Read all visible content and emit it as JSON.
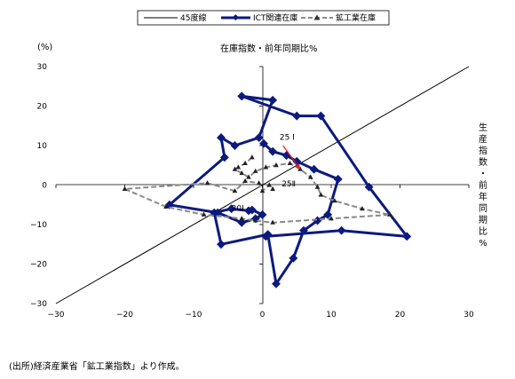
{
  "chart_data": {
    "type": "scatter",
    "title": "在庫指数・前年同期比%",
    "ylabel": "(%)",
    "ylabel_right": [
      "生",
      "産",
      "指",
      "数",
      "・",
      "前",
      "年",
      "同",
      "期",
      "比",
      "%"
    ],
    "xlim": [
      -30,
      30
    ],
    "ylim": [
      -30,
      30
    ],
    "x_ticks": [
      "−30",
      "−20",
      "−10",
      "0",
      "10",
      "20",
      "30"
    ],
    "y_ticks": [
      "30",
      "20",
      "10",
      "0",
      "−10",
      "−20",
      "−30"
    ],
    "legend_position": "top",
    "series": [
      {
        "name": "45度線",
        "color": "#000000",
        "style": "solid-thin",
        "points": [
          [
            -30,
            -30
          ],
          [
            30,
            30
          ]
        ]
      },
      {
        "name": "ICT関連在庫",
        "color": "#0c1a7e",
        "style": "solid-thick-diamond",
        "points": [
          [
            0.2,
            10.5
          ],
          [
            1.5,
            8.5
          ],
          [
            3.5,
            7.5
          ],
          [
            5.0,
            6.0
          ],
          [
            7.5,
            4.0
          ],
          [
            11.0,
            1.5
          ],
          [
            9.5,
            -7.5
          ],
          [
            8.0,
            -9.0
          ],
          [
            6.0,
            -11.5
          ],
          [
            4.5,
            -18.5
          ],
          [
            2.0,
            -25.0
          ],
          [
            0.8,
            -12.5
          ],
          [
            -6.0,
            -15.0
          ],
          [
            -7.0,
            -7.0
          ],
          [
            -4.5,
            -6.0
          ],
          [
            -2.0,
            -6.5
          ],
          [
            -1.5,
            -6.3
          ],
          [
            0.0,
            -7.5
          ],
          [
            -1.0,
            -8.5
          ],
          [
            -3.0,
            -9.5
          ],
          [
            -6.5,
            -7.0
          ],
          [
            -13.5,
            -5.0
          ],
          [
            -5.5,
            7.0
          ],
          [
            -6.0,
            12.0
          ],
          [
            -4.0,
            10.0
          ],
          [
            -0.5,
            12.0
          ],
          [
            1.5,
            21.5
          ],
          [
            -3.0,
            22.5
          ],
          [
            5.0,
            17.5
          ],
          [
            8.5,
            17.5
          ],
          [
            15.5,
            -0.5
          ],
          [
            21.0,
            -13.0
          ],
          [
            11.5,
            -11.5
          ],
          [
            0.5,
            -13.0
          ]
        ]
      },
      {
        "name": "鉱工業在庫",
        "color": "#8a8a8a",
        "style": "dashed-triangle",
        "points": [
          [
            -1.5,
            7.0
          ],
          [
            -2.5,
            5.5
          ],
          [
            -3.5,
            4.5
          ],
          [
            -4.0,
            4.0
          ],
          [
            -3.0,
            3.0
          ],
          [
            -2.0,
            2.0
          ],
          [
            -1.0,
            3.5
          ],
          [
            0.5,
            4.5
          ],
          [
            2.0,
            5.0
          ],
          [
            4.0,
            5.5
          ],
          [
            5.5,
            4.0
          ],
          [
            7.0,
            2.0
          ],
          [
            8.0,
            -0.5
          ],
          [
            8.5,
            -2.5
          ],
          [
            10.5,
            -4.0
          ],
          [
            14.5,
            -6.0
          ],
          [
            18.5,
            -7.5
          ],
          [
            10.0,
            -8.5
          ],
          [
            1.5,
            -9.5
          ],
          [
            -1.0,
            -9.0
          ],
          [
            -3.0,
            -8.5
          ],
          [
            -8.5,
            -7.5
          ],
          [
            -14.0,
            -5.5
          ],
          [
            -20.0,
            -1.0
          ],
          [
            -8.0,
            0.5
          ],
          [
            -4.0,
            -1.5
          ],
          [
            -2.5,
            1.0
          ],
          [
            -0.5,
            0.5
          ],
          [
            0.0,
            -1.5
          ],
          [
            1.0,
            0.0
          ],
          [
            1.5,
            -1.0
          ]
        ]
      }
    ],
    "annotations": [
      {
        "text": "25 I",
        "x": 2.5,
        "y": 11.5
      },
      {
        "text": "25Ⅱ",
        "x": 2.8,
        "y": -0.3
      },
      {
        "text": "20Ⅰ",
        "x": -4.5,
        "y": -6.5
      }
    ],
    "arrows": [
      {
        "x1": 3.0,
        "y1": 10.0,
        "x2": 5.5,
        "y2": 4.0,
        "color": "#e02020"
      }
    ]
  },
  "source_note": "(出所)経済産業省「鉱工業指数」より作成。"
}
